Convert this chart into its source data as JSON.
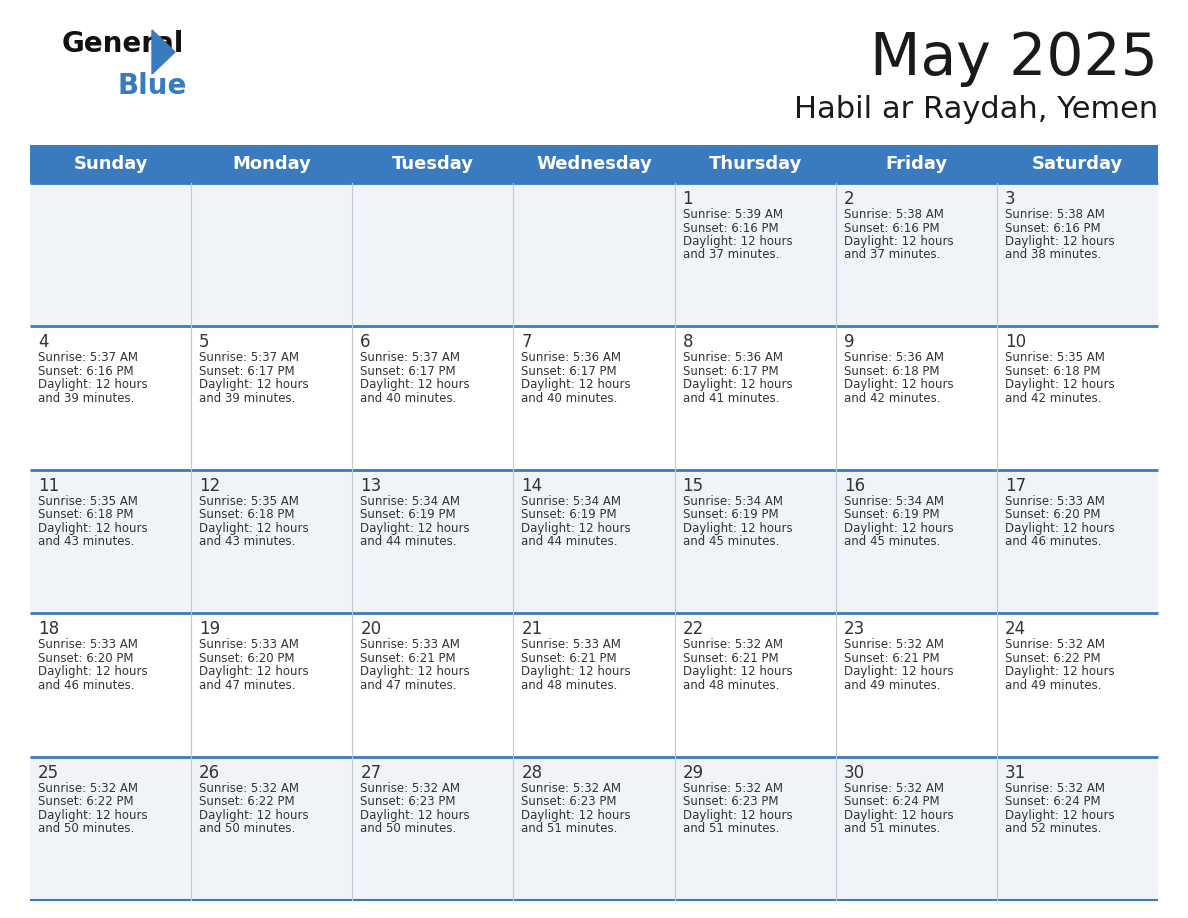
{
  "title": "May 2025",
  "subtitle": "Habil ar Raydah, Yemen",
  "header_color": "#3a7abf",
  "header_text_color": "#ffffff",
  "day_names": [
    "Sunday",
    "Monday",
    "Tuesday",
    "Wednesday",
    "Thursday",
    "Friday",
    "Saturday"
  ],
  "cell_bg_odd": "#f0f4f8",
  "cell_bg_even": "#ffffff",
  "border_color": "#3a7abf",
  "text_color": "#333333",
  "days": [
    {
      "day": 1,
      "col": 4,
      "row": 0,
      "sunrise": "5:39 AM",
      "sunset": "6:16 PM",
      "daylight": "12 hours",
      "and_part": "and 37 minutes."
    },
    {
      "day": 2,
      "col": 5,
      "row": 0,
      "sunrise": "5:38 AM",
      "sunset": "6:16 PM",
      "daylight": "12 hours",
      "and_part": "and 37 minutes."
    },
    {
      "day": 3,
      "col": 6,
      "row": 0,
      "sunrise": "5:38 AM",
      "sunset": "6:16 PM",
      "daylight": "12 hours",
      "and_part": "and 38 minutes."
    },
    {
      "day": 4,
      "col": 0,
      "row": 1,
      "sunrise": "5:37 AM",
      "sunset": "6:16 PM",
      "daylight": "12 hours",
      "and_part": "and 39 minutes."
    },
    {
      "day": 5,
      "col": 1,
      "row": 1,
      "sunrise": "5:37 AM",
      "sunset": "6:17 PM",
      "daylight": "12 hours",
      "and_part": "and 39 minutes."
    },
    {
      "day": 6,
      "col": 2,
      "row": 1,
      "sunrise": "5:37 AM",
      "sunset": "6:17 PM",
      "daylight": "12 hours",
      "and_part": "and 40 minutes."
    },
    {
      "day": 7,
      "col": 3,
      "row": 1,
      "sunrise": "5:36 AM",
      "sunset": "6:17 PM",
      "daylight": "12 hours",
      "and_part": "and 40 minutes."
    },
    {
      "day": 8,
      "col": 4,
      "row": 1,
      "sunrise": "5:36 AM",
      "sunset": "6:17 PM",
      "daylight": "12 hours",
      "and_part": "and 41 minutes."
    },
    {
      "day": 9,
      "col": 5,
      "row": 1,
      "sunrise": "5:36 AM",
      "sunset": "6:18 PM",
      "daylight": "12 hours",
      "and_part": "and 42 minutes."
    },
    {
      "day": 10,
      "col": 6,
      "row": 1,
      "sunrise": "5:35 AM",
      "sunset": "6:18 PM",
      "daylight": "12 hours",
      "and_part": "and 42 minutes."
    },
    {
      "day": 11,
      "col": 0,
      "row": 2,
      "sunrise": "5:35 AM",
      "sunset": "6:18 PM",
      "daylight": "12 hours",
      "and_part": "and 43 minutes."
    },
    {
      "day": 12,
      "col": 1,
      "row": 2,
      "sunrise": "5:35 AM",
      "sunset": "6:18 PM",
      "daylight": "12 hours",
      "and_part": "and 43 minutes."
    },
    {
      "day": 13,
      "col": 2,
      "row": 2,
      "sunrise": "5:34 AM",
      "sunset": "6:19 PM",
      "daylight": "12 hours",
      "and_part": "and 44 minutes."
    },
    {
      "day": 14,
      "col": 3,
      "row": 2,
      "sunrise": "5:34 AM",
      "sunset": "6:19 PM",
      "daylight": "12 hours",
      "and_part": "and 44 minutes."
    },
    {
      "day": 15,
      "col": 4,
      "row": 2,
      "sunrise": "5:34 AM",
      "sunset": "6:19 PM",
      "daylight": "12 hours",
      "and_part": "and 45 minutes."
    },
    {
      "day": 16,
      "col": 5,
      "row": 2,
      "sunrise": "5:34 AM",
      "sunset": "6:19 PM",
      "daylight": "12 hours",
      "and_part": "and 45 minutes."
    },
    {
      "day": 17,
      "col": 6,
      "row": 2,
      "sunrise": "5:33 AM",
      "sunset": "6:20 PM",
      "daylight": "12 hours",
      "and_part": "and 46 minutes."
    },
    {
      "day": 18,
      "col": 0,
      "row": 3,
      "sunrise": "5:33 AM",
      "sunset": "6:20 PM",
      "daylight": "12 hours",
      "and_part": "and 46 minutes."
    },
    {
      "day": 19,
      "col": 1,
      "row": 3,
      "sunrise": "5:33 AM",
      "sunset": "6:20 PM",
      "daylight": "12 hours",
      "and_part": "and 47 minutes."
    },
    {
      "day": 20,
      "col": 2,
      "row": 3,
      "sunrise": "5:33 AM",
      "sunset": "6:21 PM",
      "daylight": "12 hours",
      "and_part": "and 47 minutes."
    },
    {
      "day": 21,
      "col": 3,
      "row": 3,
      "sunrise": "5:33 AM",
      "sunset": "6:21 PM",
      "daylight": "12 hours",
      "and_part": "and 48 minutes."
    },
    {
      "day": 22,
      "col": 4,
      "row": 3,
      "sunrise": "5:32 AM",
      "sunset": "6:21 PM",
      "daylight": "12 hours",
      "and_part": "and 48 minutes."
    },
    {
      "day": 23,
      "col": 5,
      "row": 3,
      "sunrise": "5:32 AM",
      "sunset": "6:21 PM",
      "daylight": "12 hours",
      "and_part": "and 49 minutes."
    },
    {
      "day": 24,
      "col": 6,
      "row": 3,
      "sunrise": "5:32 AM",
      "sunset": "6:22 PM",
      "daylight": "12 hours",
      "and_part": "and 49 minutes."
    },
    {
      "day": 25,
      "col": 0,
      "row": 4,
      "sunrise": "5:32 AM",
      "sunset": "6:22 PM",
      "daylight": "12 hours",
      "and_part": "and 50 minutes."
    },
    {
      "day": 26,
      "col": 1,
      "row": 4,
      "sunrise": "5:32 AM",
      "sunset": "6:22 PM",
      "daylight": "12 hours",
      "and_part": "and 50 minutes."
    },
    {
      "day": 27,
      "col": 2,
      "row": 4,
      "sunrise": "5:32 AM",
      "sunset": "6:23 PM",
      "daylight": "12 hours",
      "and_part": "and 50 minutes."
    },
    {
      "day": 28,
      "col": 3,
      "row": 4,
      "sunrise": "5:32 AM",
      "sunset": "6:23 PM",
      "daylight": "12 hours",
      "and_part": "and 51 minutes."
    },
    {
      "day": 29,
      "col": 4,
      "row": 4,
      "sunrise": "5:32 AM",
      "sunset": "6:23 PM",
      "daylight": "12 hours",
      "and_part": "and 51 minutes."
    },
    {
      "day": 30,
      "col": 5,
      "row": 4,
      "sunrise": "5:32 AM",
      "sunset": "6:24 PM",
      "daylight": "12 hours",
      "and_part": "and 51 minutes."
    },
    {
      "day": 31,
      "col": 6,
      "row": 4,
      "sunrise": "5:32 AM",
      "sunset": "6:24 PM",
      "daylight": "12 hours",
      "and_part": "and 52 minutes."
    }
  ]
}
